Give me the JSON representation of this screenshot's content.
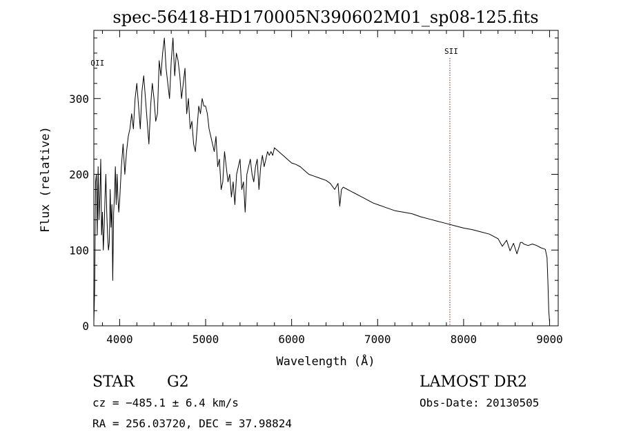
{
  "chart_data": {
    "type": "line",
    "title": "spec-56418-HD170005N390602M01_sp08-125.fits",
    "xlabel": "Wavelength (Å)",
    "ylabel": "Flux (relative)",
    "xlim": [
      3700,
      9100
    ],
    "ylim": [
      0,
      390
    ],
    "xticks": [
      "4000",
      "5000",
      "6000",
      "7000",
      "8000",
      "9000"
    ],
    "xticks_values": [
      4000,
      5000,
      6000,
      7000,
      8000,
      9000
    ],
    "yticks": [
      "0",
      "100",
      "200",
      "300"
    ],
    "yticks_values": [
      0,
      100,
      200,
      300
    ],
    "grid": false,
    "line_markers": [
      {
        "label": "OII",
        "wavelength": 3727,
        "dashed": false
      },
      {
        "label": "SII",
        "wavelength": 7840,
        "dashed": true,
        "color": "#8b1a1a"
      }
    ],
    "series": [
      {
        "x": [
          3700,
          3710,
          3720,
          3730,
          3740,
          3750,
          3760,
          3770,
          3780,
          3790,
          3800,
          3810,
          3820,
          3830,
          3840,
          3850,
          3860,
          3870,
          3880,
          3890,
          3900,
          3910,
          3920,
          3930,
          3940,
          3950,
          3960,
          3970,
          3980,
          3990,
          4000,
          4020,
          4040,
          4060,
          4080,
          4100,
          4120,
          4140,
          4160,
          4180,
          4200,
          4220,
          4240,
          4260,
          4280,
          4300,
          4320,
          4340,
          4360,
          4380,
          4400,
          4420,
          4440,
          4460,
          4480,
          4500,
          4520,
          4540,
          4560,
          4580,
          4600,
          4620,
          4640,
          4660,
          4680,
          4700,
          4720,
          4740,
          4760,
          4780,
          4800,
          4820,
          4840,
          4860,
          4880,
          4900,
          4920,
          4940,
          4960,
          4980,
          5000,
          5020,
          5040,
          5060,
          5080,
          5100,
          5120,
          5140,
          5160,
          5180,
          5200,
          5220,
          5240,
          5260,
          5280,
          5300,
          5320,
          5340,
          5360,
          5380,
          5400,
          5420,
          5440,
          5460,
          5480,
          5500,
          5520,
          5540,
          5560,
          5580,
          5600,
          5620,
          5640,
          5660,
          5680,
          5700,
          5720,
          5740,
          5760,
          5780,
          5800,
          5850,
          5900,
          5950,
          6000,
          6050,
          6100,
          6150,
          6200,
          6250,
          6300,
          6350,
          6400,
          6450,
          6500,
          6540,
          6560,
          6580,
          6600,
          6650,
          6700,
          6750,
          6800,
          6850,
          6900,
          6950,
          7000,
          7100,
          7200,
          7300,
          7400,
          7500,
          7600,
          7700,
          7800,
          7900,
          8000,
          8100,
          8200,
          8300,
          8400,
          8450,
          8500,
          8540,
          8560,
          8580,
          8620,
          8660,
          8680,
          8700,
          8750,
          8800,
          8850,
          8900,
          8950,
          8970,
          8980,
          8990,
          9000
        ],
        "y": [
          5,
          50,
          190,
          200,
          120,
          210,
          140,
          170,
          220,
          120,
          150,
          100,
          130,
          170,
          200,
          150,
          120,
          100,
          110,
          180,
          130,
          160,
          60,
          150,
          170,
          210,
          160,
          200,
          170,
          150,
          165,
          210,
          240,
          200,
          230,
          250,
          260,
          280,
          260,
          300,
          320,
          290,
          260,
          310,
          330,
          300,
          270,
          240,
          290,
          320,
          300,
          270,
          280,
          350,
          330,
          360,
          380,
          340,
          320,
          300,
          350,
          380,
          330,
          360,
          350,
          330,
          300,
          320,
          340,
          280,
          300,
          260,
          270,
          240,
          230,
          260,
          290,
          280,
          300,
          290,
          290,
          280,
          260,
          250,
          240,
          230,
          250,
          210,
          220,
          180,
          190,
          230,
          210,
          190,
          200,
          170,
          190,
          160,
          200,
          210,
          220,
          180,
          190,
          150,
          200,
          210,
          220,
          200,
          190,
          210,
          220,
          180,
          210,
          225,
          210,
          220,
          230,
          225,
          230,
          225,
          235,
          230,
          225,
          220,
          215,
          213,
          210,
          205,
          200,
          198,
          196,
          194,
          192,
          188,
          180,
          188,
          158,
          180,
          183,
          180,
          177,
          174,
          171,
          168,
          165,
          162,
          160,
          156,
          152,
          150,
          148,
          144,
          141,
          138,
          135,
          132,
          129,
          127,
          124,
          121,
          115,
          105,
          113,
          99,
          104,
          109,
          95,
          110,
          110,
          108,
          106,
          108,
          106,
          103,
          101,
          90,
          60,
          20,
          5
        ]
      }
    ]
  },
  "info": {
    "class_label": "STAR",
    "subclass": "G2",
    "survey": "LAMOST DR2",
    "cz_line": "cz = −485.1 ± 6.4 km/s",
    "obs_date_line": "Obs-Date: 20130505",
    "radec_line": "RA = 256.03720, DEC =  37.98824"
  }
}
